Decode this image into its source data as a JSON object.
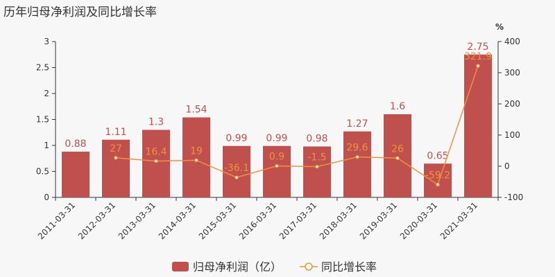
{
  "title": "历年归母净利润及同比增长率",
  "chart_data": {
    "type": "bar",
    "title": "历年归母净利润及同比增长率",
    "categories": [
      "2011-03-31",
      "2012-03-31",
      "2013-03-31",
      "2014-03-31",
      "2015-03-31",
      "2016-03-31",
      "2017-03-31",
      "2018-03-31",
      "2019-03-31",
      "2020-03-31",
      "2021-03-31"
    ],
    "series": [
      {
        "name": "归母净利润（亿）",
        "type": "bar",
        "axis": "left",
        "color": "#c0504d",
        "values": [
          0.88,
          1.11,
          1.3,
          1.54,
          0.99,
          0.99,
          0.98,
          1.27,
          1.6,
          0.65,
          2.75
        ],
        "labels": [
          "0.88",
          "1.11",
          "1.3",
          "1.54",
          "0.99",
          "0.99",
          "0.98",
          "1.27",
          "1.6",
          "0.65",
          "2.75"
        ]
      },
      {
        "name": "同比增长率",
        "type": "line",
        "axis": "right",
        "color": "#f0923a",
        "values": [
          null,
          27,
          16.4,
          19,
          -36.1,
          0.9,
          -1.5,
          29.6,
          26,
          -59.2,
          321.9
        ],
        "labels": [
          "",
          "27",
          "16.4",
          "19",
          "-36.1",
          "0.9",
          "-1.5",
          "29.6",
          "26",
          "-59.2",
          "321.9"
        ]
      }
    ],
    "y_left": {
      "ylim": [
        0,
        3
      ],
      "ticks": [
        "0",
        "0.5",
        "1",
        "1.5",
        "2",
        "2.5",
        "3"
      ]
    },
    "y_right": {
      "ylim": [
        -100,
        400
      ],
      "ticks": [
        "-100",
        "0",
        "100",
        "200",
        "300",
        "400"
      ],
      "unit": "%"
    },
    "grid": false,
    "legend": "bottom-center"
  }
}
